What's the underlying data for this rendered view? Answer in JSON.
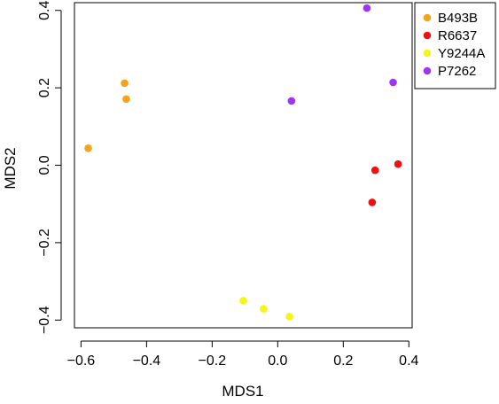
{
  "chart_data": {
    "type": "scatter",
    "title": "",
    "xlabel": "MDS1",
    "ylabel": "MDS2",
    "xlim": [
      -0.62,
      0.41
    ],
    "ylim": [
      -0.42,
      0.42
    ],
    "xticks": [
      -0.6,
      -0.4,
      -0.2,
      0.0,
      0.2,
      0.4
    ],
    "yticks": [
      -0.4,
      -0.2,
      0.0,
      0.2,
      0.4
    ],
    "xtick_labels": [
      "−0.6",
      "−0.4",
      "−0.2",
      "0.0",
      "0.2",
      "0.4"
    ],
    "ytick_labels": [
      "−0.4",
      "−0.2",
      "0.0",
      "0.2",
      "0.4"
    ],
    "grid": false,
    "legend_position": "top-right",
    "series": [
      {
        "name": "B493B",
        "color": "#f7a21b",
        "points": [
          [
            -0.467,
            0.212
          ],
          [
            -0.462,
            0.171
          ],
          [
            -0.578,
            0.044
          ]
        ]
      },
      {
        "name": "R6637",
        "color": "#ee1111",
        "points": [
          [
            0.297,
            -0.013
          ],
          [
            0.367,
            0.003
          ],
          [
            0.288,
            -0.096
          ]
        ]
      },
      {
        "name": "Y9244A",
        "color": "#f5f51b",
        "points": [
          [
            -0.105,
            -0.35
          ],
          [
            -0.043,
            -0.371
          ],
          [
            0.036,
            -0.391
          ]
        ]
      },
      {
        "name": "P7262",
        "color": "#a133f2",
        "points": [
          [
            0.272,
            0.406
          ],
          [
            0.352,
            0.214
          ],
          [
            0.042,
            0.166
          ]
        ]
      }
    ]
  }
}
